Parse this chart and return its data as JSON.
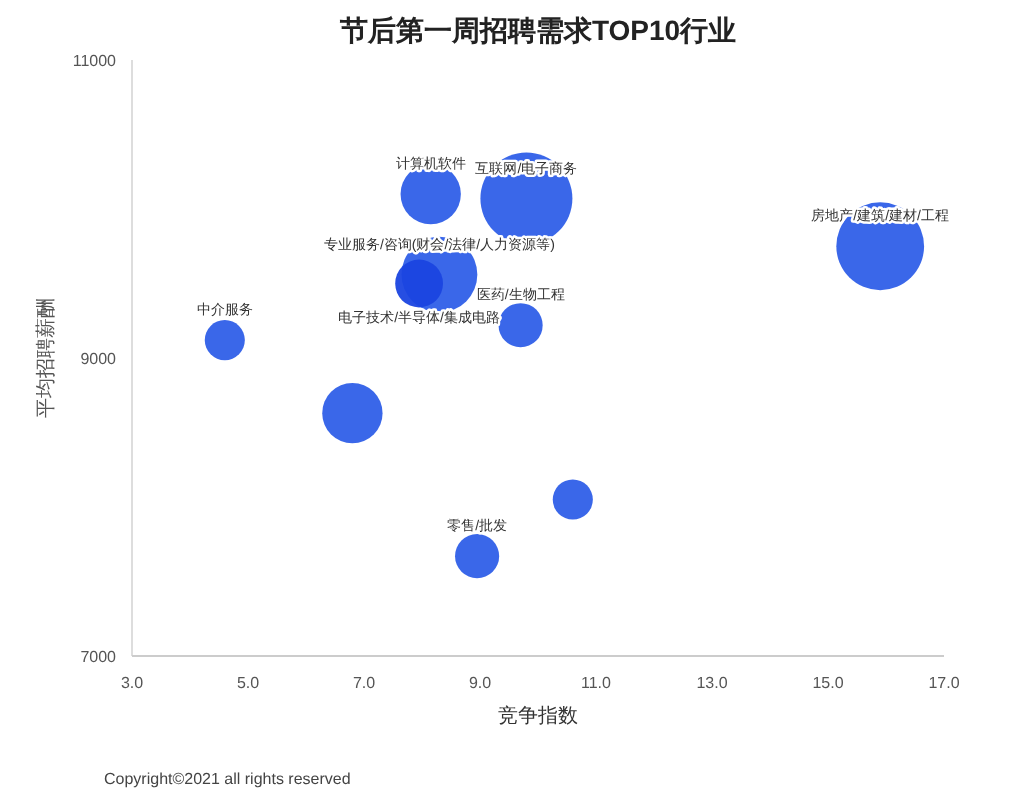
{
  "chart_data": {
    "type": "bubble",
    "title": "节后第一周招聘需求TOP10行业",
    "xlabel": "竞争指数",
    "ylabel": "平均招聘薪酬",
    "x": [
      8.15,
      9.8,
      15.9,
      8.3,
      7.95,
      9.7,
      4.6,
      6.8,
      10.6,
      8.95
    ],
    "values": [
      10100,
      10070,
      9750,
      9560,
      9500,
      9220,
      9120,
      8630,
      8050,
      7670
    ],
    "sizes": [
      0.43,
      1,
      0.91,
      0.68,
      0.27,
      0.23,
      0.19,
      0.43,
      0.19,
      0.23
    ],
    "colors": [
      "#2f5fe8",
      "#2f5fe8",
      "#2f5fe8",
      "#2f5fe8",
      "#1a45e0",
      "#2f5fe8",
      "#2f5fe8",
      "#2f5fe8",
      "#2f5fe8",
      "#2f5fe8"
    ],
    "xlim": [
      3,
      17
    ],
    "ylim": [
      7000,
      11000
    ],
    "xticks": [
      {
        "value": 3,
        "label": "3.0"
      },
      {
        "value": 5,
        "label": "5.0"
      },
      {
        "value": 7,
        "label": "7.0"
      },
      {
        "value": 9,
        "label": "9.0"
      },
      {
        "value": 11,
        "label": "11.0"
      },
      {
        "value": 13,
        "label": "13.0"
      },
      {
        "value": 15,
        "label": "15.0"
      },
      {
        "value": 17,
        "label": "17.0"
      }
    ],
    "yticks": [
      7000,
      9000,
      11000
    ],
    "grid": false,
    "annotations": [
      {
        "text": "计算机软件",
        "x": 8.15,
        "y": 10100
      },
      {
        "text": "互联网/电子商务",
        "x": 9.8,
        "y": 10070
      },
      {
        "text": "房地产/建筑/建材/工程",
        "x": 15.9,
        "y": 9750
      },
      {
        "text": "专业服务/咨询(财会/法律/人力资源等)",
        "x": 8.3,
        "y": 9560
      },
      {
        "text": "电子技术/半导体/集成电路",
        "x": 7.95,
        "y": 9500
      },
      {
        "text": "医药/生物工程",
        "x": 9.7,
        "y": 9220
      },
      {
        "text": "中介服务",
        "x": 4.6,
        "y": 9120
      },
      {
        "text": "零售/批发",
        "x": 8.95,
        "y": 7670
      },
      "Copyright©2021 all rights reserved"
    ]
  }
}
